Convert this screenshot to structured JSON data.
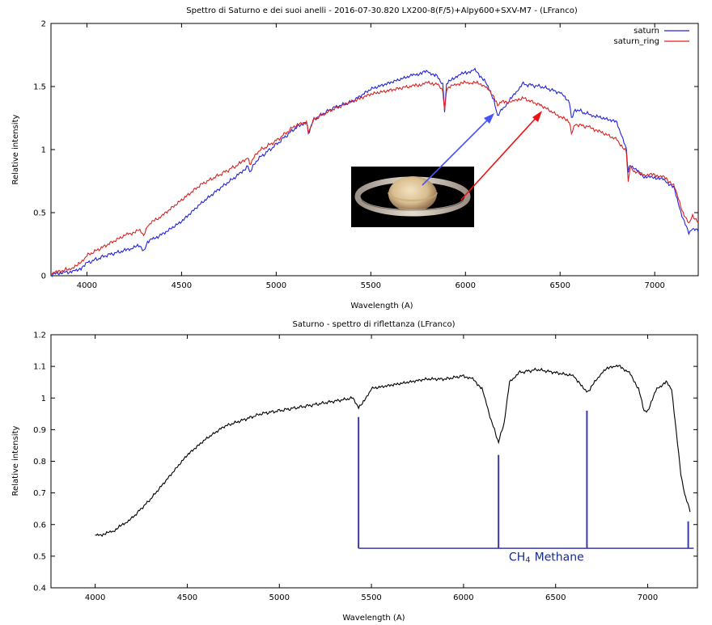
{
  "colors": {
    "saturn": "#2222dd",
    "saturn_ring": "#dd2222",
    "reflectance": "#000000",
    "methane_markers": "#3a3aa8",
    "arrow_blue": "#4455ff",
    "arrow_red": "#ee1111"
  },
  "chart_data": [
    {
      "type": "line",
      "title": "Spettro di Saturno e dei suoi anelli - 2016-07-30.820 LX200-8(F/5)+Alpy600+SXV-M7 - (LFranco)",
      "xlabel": "Wavelength (A)",
      "ylabel": "Relative intensity",
      "xlim": [
        3810,
        7230
      ],
      "ylim": [
        0,
        2
      ],
      "xticks": [
        4000,
        4500,
        5000,
        5500,
        6000,
        6500,
        7000
      ],
      "yticks": [
        0,
        0.5,
        1,
        1.5,
        2
      ],
      "ytick_labels": [
        "0",
        "0.5",
        "1",
        "1.5",
        "2"
      ],
      "legend_position": "top-right",
      "grid": false,
      "inset": "saturn-photo",
      "series": [
        {
          "name": "saturn",
          "color": "#2222dd",
          "x": [
            3810,
            3900,
            3950,
            4000,
            4100,
            4200,
            4280,
            4300,
            4320,
            4400,
            4500,
            4600,
            4700,
            4800,
            4850,
            4860,
            4900,
            5000,
            5100,
            5160,
            5170,
            5200,
            5300,
            5400,
            5500,
            5600,
            5700,
            5750,
            5800,
            5850,
            5880,
            5890,
            5900,
            5950,
            6000,
            6050,
            6100,
            6150,
            6170,
            6200,
            6250,
            6300,
            6400,
            6500,
            6550,
            6560,
            6580,
            6650,
            6700,
            6800,
            6850,
            6860,
            6870,
            6900,
            6950,
            7000,
            7050,
            7100,
            7150,
            7180,
            7200,
            7230
          ],
          "y": [
            0.01,
            0.03,
            0.04,
            0.1,
            0.16,
            0.2,
            0.24,
            0.2,
            0.27,
            0.33,
            0.43,
            0.57,
            0.69,
            0.8,
            0.87,
            0.82,
            0.92,
            1.04,
            1.17,
            1.22,
            1.13,
            1.24,
            1.33,
            1.38,
            1.48,
            1.53,
            1.58,
            1.6,
            1.62,
            1.58,
            1.52,
            1.3,
            1.52,
            1.58,
            1.61,
            1.63,
            1.55,
            1.4,
            1.27,
            1.33,
            1.42,
            1.52,
            1.5,
            1.45,
            1.38,
            1.24,
            1.32,
            1.28,
            1.26,
            1.22,
            1.0,
            0.82,
            0.88,
            0.84,
            0.78,
            0.78,
            0.76,
            0.7,
            0.45,
            0.34,
            0.38,
            0.35
          ]
        },
        {
          "name": "saturn_ring",
          "color": "#dd2222",
          "x": [
            3810,
            3900,
            3950,
            4000,
            4100,
            4200,
            4280,
            4300,
            4320,
            4400,
            4500,
            4600,
            4700,
            4800,
            4850,
            4860,
            4900,
            5000,
            5100,
            5160,
            5170,
            5200,
            5300,
            5400,
            5500,
            5600,
            5700,
            5750,
            5800,
            5850,
            5880,
            5890,
            5900,
            5950,
            6000,
            6050,
            6100,
            6150,
            6170,
            6200,
            6250,
            6300,
            6400,
            6500,
            6550,
            6560,
            6580,
            6650,
            6700,
            6800,
            6850,
            6860,
            6870,
            6900,
            6950,
            7000,
            7050,
            7100,
            7150,
            7180,
            7200,
            7230
          ],
          "y": [
            0.02,
            0.05,
            0.08,
            0.16,
            0.24,
            0.32,
            0.36,
            0.32,
            0.4,
            0.48,
            0.6,
            0.72,
            0.8,
            0.88,
            0.94,
            0.88,
            0.98,
            1.07,
            1.19,
            1.22,
            1.14,
            1.24,
            1.32,
            1.38,
            1.44,
            1.47,
            1.5,
            1.51,
            1.53,
            1.52,
            1.47,
            1.3,
            1.48,
            1.52,
            1.53,
            1.53,
            1.51,
            1.42,
            1.36,
            1.38,
            1.38,
            1.41,
            1.35,
            1.26,
            1.22,
            1.12,
            1.2,
            1.18,
            1.15,
            1.08,
            0.98,
            0.74,
            0.86,
            0.82,
            0.8,
            0.8,
            0.78,
            0.72,
            0.5,
            0.41,
            0.48,
            0.42
          ]
        }
      ]
    },
    {
      "type": "line",
      "title": "Saturno - spettro di riflettanza (LFranco)",
      "xlabel": "Wavelength (A)",
      "ylabel": "Relative intensity",
      "xlim": [
        3760,
        7270
      ],
      "ylim": [
        0.4,
        1.2
      ],
      "xticks": [
        4000,
        4500,
        5000,
        5500,
        6000,
        6500,
        7000
      ],
      "yticks": [
        0.4,
        0.5,
        0.6,
        0.7,
        0.8,
        0.9,
        1,
        1.1,
        1.2
      ],
      "ytick_labels": [
        "0.4",
        "0.5",
        "0.6",
        "0.7",
        "0.8",
        "0.9",
        "1",
        "1.1",
        "1.2"
      ],
      "grid": false,
      "series": [
        {
          "color": "#000000",
          "x": [
            4000,
            4050,
            4100,
            4150,
            4200,
            4300,
            4400,
            4500,
            4600,
            4700,
            4800,
            4900,
            5000,
            5100,
            5200,
            5300,
            5400,
            5430,
            5450,
            5500,
            5600,
            5700,
            5800,
            5900,
            6000,
            6050,
            6100,
            6150,
            6190,
            6220,
            6250,
            6300,
            6400,
            6500,
            6600,
            6650,
            6680,
            6700,
            6750,
            6800,
            6850,
            6900,
            6950,
            6980,
            7000,
            7050,
            7100,
            7130,
            7150,
            7180,
            7200,
            7230
          ],
          "y": [
            0.565,
            0.57,
            0.58,
            0.6,
            0.62,
            0.68,
            0.75,
            0.82,
            0.87,
            0.91,
            0.93,
            0.95,
            0.96,
            0.97,
            0.98,
            0.99,
            1.0,
            0.97,
            0.98,
            1.03,
            1.04,
            1.05,
            1.06,
            1.06,
            1.07,
            1.06,
            1.03,
            0.93,
            0.86,
            0.92,
            1.05,
            1.08,
            1.09,
            1.08,
            1.07,
            1.03,
            1.02,
            1.04,
            1.08,
            1.1,
            1.1,
            1.08,
            1.03,
            0.96,
            0.96,
            1.03,
            1.05,
            1.03,
            0.92,
            0.76,
            0.7,
            0.64
          ]
        }
      ],
      "markers": [
        {
          "x": 5430,
          "y_top": 0.94
        },
        {
          "x": 6190,
          "y_top": 0.82
        },
        {
          "x": 6670,
          "y_top": 0.96
        },
        {
          "x": 7220,
          "y_top": 0.61
        }
      ],
      "marker_baseline": 0.525,
      "annotation": {
        "sub_text": "CH",
        "subscript": "4",
        "rest": "Methane",
        "x": 6450,
        "y": 0.485
      }
    }
  ]
}
